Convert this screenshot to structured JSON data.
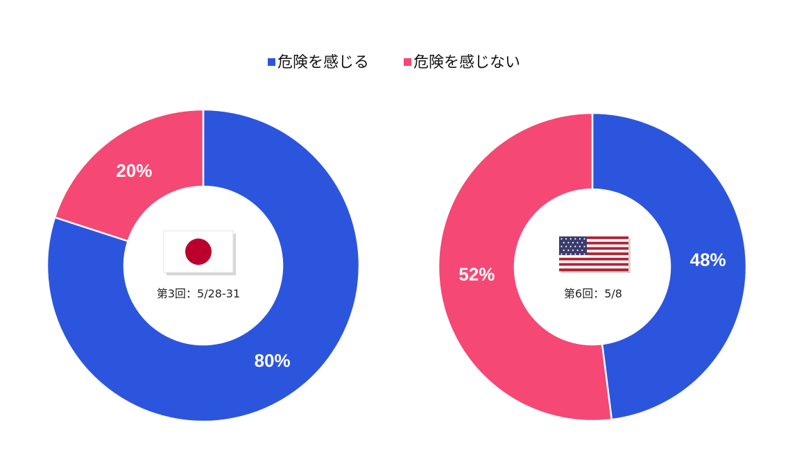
{
  "colors": {
    "danger": "#2c55de",
    "no_danger": "#f54874"
  },
  "legend": [
    {
      "label": "危険を感じる",
      "color": "#2c55de"
    },
    {
      "label": "危険を感じない",
      "color": "#f54874"
    }
  ],
  "chart_data": [
    {
      "type": "pie",
      "variant": "donut",
      "flag_icon": "japan-flag-icon",
      "caption": "第3回：5/28-31",
      "categories": [
        "危険を感じる",
        "危険を感じない"
      ],
      "values": [
        80,
        20
      ],
      "labels": [
        "80%",
        "20%"
      ]
    },
    {
      "type": "pie",
      "variant": "donut",
      "flag_icon": "usa-flag-icon",
      "caption": "第6回：5/8",
      "categories": [
        "危険を感じる",
        "危険を感じない"
      ],
      "values": [
        48,
        52
      ],
      "labels": [
        "48%",
        "52%"
      ]
    }
  ]
}
